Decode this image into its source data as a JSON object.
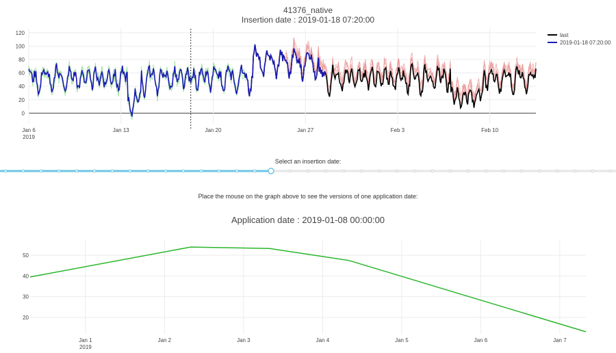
{
  "header": {
    "title": "41376_native",
    "subtitle": "Insertion date : 2019-01-18 07:20:00"
  },
  "slider": {
    "label": "Select an insertion date:",
    "selected_fraction": 0.44,
    "color": "#6fc6e3"
  },
  "hover_note": "Place the mouse on the graph above to see the versions of one application date:",
  "chart_data": [
    {
      "type": "line",
      "x_ticks": [
        "Jan 6",
        "Jan 13",
        "Jan 20",
        "Jan 27",
        "Feb 3",
        "Feb 10"
      ],
      "x_year": "2019",
      "x_range_days": [
        0,
        38.5
      ],
      "y_ticks": [
        "0",
        "20",
        "40",
        "60",
        "80",
        "100",
        "120"
      ],
      "ylim": [
        -16,
        126
      ],
      "insertion_marker_day": 12.3,
      "legend": [
        {
          "name": "last",
          "color": "#000000"
        },
        {
          "name": "2019-01-18 07:20:00",
          "color": "#1a1ab4"
        }
      ],
      "colors": {
        "past_versions": "#90dc90",
        "future_versions": "#e89090"
      }
    },
    {
      "type": "line",
      "x_ticks": [
        "Jan 1",
        "Jan 2",
        "Jan 3",
        "Jan 4",
        "Jan 5",
        "Jan 6",
        "Jan 7"
      ],
      "x_year": "2019",
      "ylim": [
        12,
        57
      ],
      "y_ticks": [
        "20",
        "30",
        "40",
        "50"
      ],
      "color": "#2ab52a",
      "series": [
        {
          "x": [
            -0.7,
            1.33,
            2.33,
            3.33,
            6.33
          ],
          "y": [
            39.5,
            54,
            53.3,
            47.5,
            13
          ]
        }
      ]
    }
  ],
  "app_title": "Application date : 2019-01-08 00:00:00"
}
